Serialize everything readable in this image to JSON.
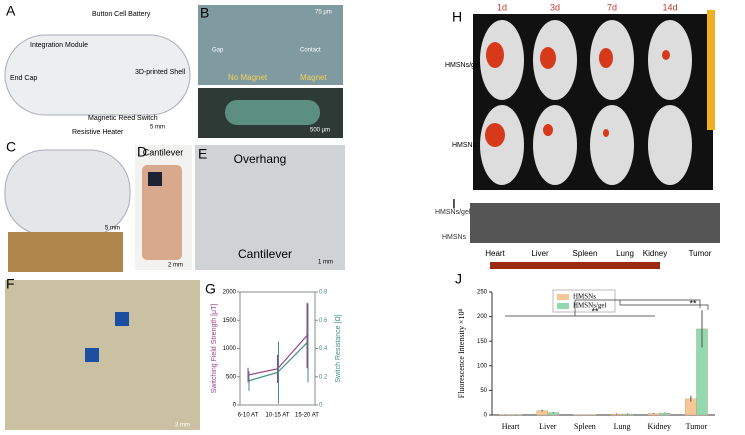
{
  "panel_a": {
    "label": "A",
    "end_cap": "End Cap",
    "integration_module": "Integration Module",
    "battery": "Button Cell Battery",
    "reed_switch": "Magnetic Reed Switch",
    "shell": "3D-printed Shell",
    "heater": "Resistive Heater",
    "scale": "5 mm"
  },
  "panel_b": {
    "label": "B",
    "scale_top": "75 μm",
    "gap": "Gap",
    "contact": "Contact",
    "no_magnet": "No Magnet",
    "magnet": "Magnet",
    "scale_bottom": "500 μm"
  },
  "panel_c": {
    "label": "C",
    "scale": "5 mm"
  },
  "panel_d": {
    "label": "D",
    "title": "Cantilever",
    "scale": "2 mm"
  },
  "panel_e": {
    "label": "E",
    "top": "Overhang",
    "bottom": "Cantilever",
    "scale": "1 mm"
  },
  "panel_f": {
    "label": "F",
    "scale": "3 mm"
  },
  "panel_h": {
    "label": "H",
    "days": [
      "1d",
      "3d",
      "7d",
      "14d"
    ],
    "rows": [
      "HMSNs/gel",
      "HMSNs"
    ]
  },
  "panel_i": {
    "label": "I",
    "rows": [
      "HMSNs/gel",
      "HMSNs"
    ],
    "organs": [
      "Heart",
      "Liver",
      "Spleen",
      "Lung",
      "Kidney",
      "Tumor"
    ]
  },
  "chart_data": [
    {
      "type": "line",
      "label": "G",
      "categories": [
        "6-10 AT",
        "10-15 AT",
        "15-20 AT"
      ],
      "ylabel": "Switching Field Strength [μT]",
      "y2label": "Switch Resistance [Ω]",
      "ylim": [
        0,
        2000
      ],
      "yticks": [
        0,
        500,
        1000,
        1500,
        2000
      ],
      "y2lim": [
        0,
        0.8
      ],
      "y2ticks": [
        0,
        0.2,
        0.4,
        0.6,
        0.8
      ],
      "series": [
        {
          "color": "#9b3f8c",
          "values": [
            530,
            640,
            1230
          ],
          "errors": [
            130,
            250,
            580
          ]
        },
        {
          "color": "#3e8f86",
          "axis": "y2",
          "values": [
            0.17,
            0.23,
            0.44
          ],
          "errors": [
            0.07,
            0.22,
            0.28
          ]
        }
      ]
    },
    {
      "type": "bar",
      "label": "J",
      "ylabel": "Fluorescence Intensity ×10⁸",
      "categories": [
        "Heart",
        "Liver",
        "Spleen",
        "Lung",
        "Kidney",
        "Tumor"
      ],
      "ylim": [
        0,
        250
      ],
      "yticks": [
        0,
        50,
        100,
        150,
        200,
        250
      ],
      "series": [
        {
          "name": "HMSNs",
          "color": "#f7c796",
          "values": [
            1,
            9,
            0.5,
            2,
            3,
            33
          ],
          "errors": [
            0.5,
            2,
            0.3,
            1,
            1,
            6
          ]
        },
        {
          "name": "HMSNs/gel",
          "color": "#92d9b0",
          "values": [
            1,
            5,
            0.5,
            2,
            4,
            175
          ],
          "errors": [
            0.5,
            1,
            0.3,
            1,
            1,
            38
          ]
        }
      ],
      "annotations": [
        "**",
        "**"
      ]
    }
  ]
}
